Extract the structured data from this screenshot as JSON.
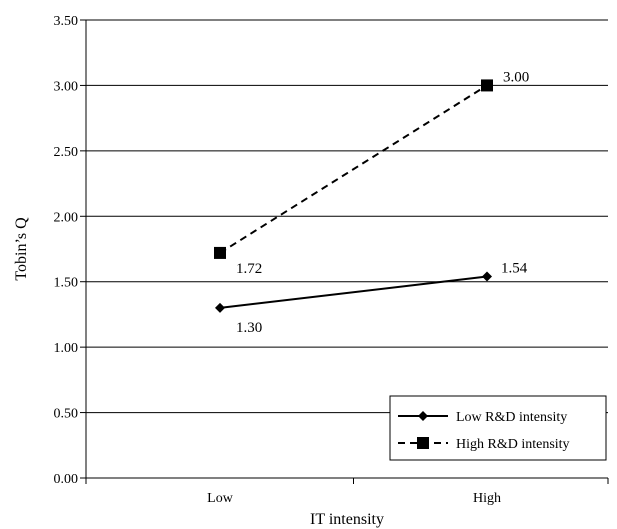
{
  "chart_data": {
    "type": "line",
    "categories": [
      "Low",
      "High"
    ],
    "xlabel": "IT intensity",
    "ylabel": "Tobin’s Q",
    "ylim": [
      0,
      3.5
    ],
    "ytick_step": 0.5,
    "ytick_labels": [
      "0.00",
      "0.50",
      "1.00",
      "1.50",
      "2.00",
      "2.50",
      "3.00",
      "3.50"
    ],
    "grid": true,
    "legend_position": "bottom-right",
    "series": [
      {
        "name": "Low R&D intensity",
        "values": [
          1.3,
          1.54
        ],
        "labels": [
          "1.30",
          "1.54"
        ],
        "line_style": "solid",
        "marker": "diamond",
        "color": "#000000"
      },
      {
        "name": "High R&D intensity",
        "values": [
          1.72,
          3.0
        ],
        "labels": [
          "1.72",
          "3.00"
        ],
        "line_style": "dashed",
        "marker": "square",
        "color": "#000000"
      }
    ]
  }
}
